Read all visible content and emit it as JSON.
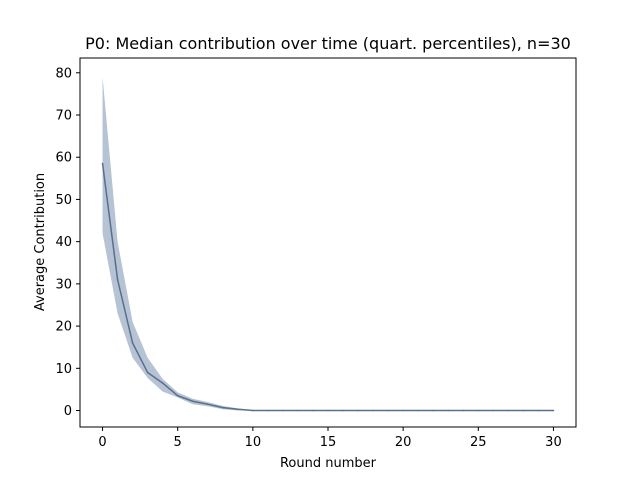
{
  "chart_data": {
    "type": "line",
    "title": "P0: Median contribution over time (quart. percentiles), n=30",
    "xlabel": "Round number",
    "ylabel": "Average Contribution",
    "xlim": [
      -1.5,
      31.5
    ],
    "ylim": [
      -3.9,
      83.5
    ],
    "xticks": [
      0,
      5,
      10,
      15,
      20,
      25,
      30
    ],
    "yticks": [
      0,
      10,
      20,
      30,
      40,
      50,
      60,
      70,
      80
    ],
    "grid": false,
    "colors": {
      "line": "#5a6f8c",
      "band": "#a9b9cd"
    },
    "series": [
      {
        "x": [
          0,
          1,
          2,
          3,
          4,
          5,
          6,
          7,
          8,
          9,
          10,
          11,
          12,
          13,
          14,
          15,
          16,
          17,
          18,
          19,
          20,
          21,
          22,
          23,
          24,
          25,
          26,
          27,
          28,
          29,
          30
        ],
        "median": [
          58.5,
          31,
          16,
          9,
          6.5,
          3.5,
          2.2,
          1.5,
          0.7,
          0.3,
          0,
          0,
          0,
          0,
          0,
          0,
          0,
          0,
          0,
          0,
          0,
          0,
          0,
          0,
          0,
          0,
          0,
          0,
          0,
          0,
          0
        ],
        "lower": [
          42,
          23,
          12.5,
          7.7,
          4.5,
          3.1,
          1.5,
          1.0,
          0.3,
          0,
          0,
          0,
          0,
          0,
          0,
          0,
          0,
          0,
          0,
          0,
          0,
          0,
          0,
          0,
          0,
          0,
          0,
          0,
          0,
          0,
          0
        ],
        "upper": [
          79,
          40,
          21,
          12.5,
          7.5,
          4.3,
          2.8,
          2.0,
          1.1,
          0.5,
          0.1,
          0,
          0,
          0,
          0,
          0,
          0,
          0,
          0,
          0,
          0,
          0,
          0,
          0,
          0,
          0,
          0,
          0,
          0,
          0,
          0
        ]
      }
    ]
  }
}
